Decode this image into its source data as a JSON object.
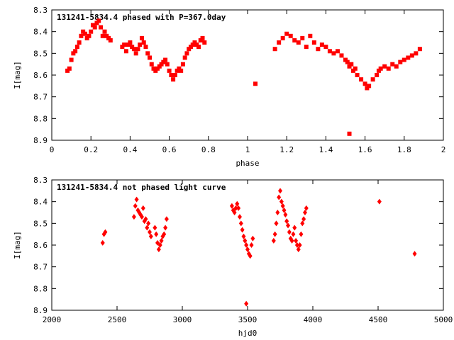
{
  "chart_data": [
    {
      "type": "scatter",
      "title": "131241-5834.4 phased with P=367.0day",
      "xlabel": "phase",
      "ylabel": "I[mag]",
      "xlim": [
        0,
        2
      ],
      "ylim": [
        8.3,
        8.9
      ],
      "y_inverted": true,
      "x_ticks": [
        "0",
        "0.2",
        "0.4",
        "0.6",
        "0.8",
        "1",
        "1.2",
        "1.4",
        "1.6",
        "1.8",
        "2"
      ],
      "y_ticks": [
        "8.3",
        "8.4",
        "8.5",
        "8.6",
        "8.7",
        "8.8",
        "8.9"
      ],
      "marker": "square",
      "color": "#ff0000",
      "grid": false,
      "series": [
        {
          "x": [
            0.08,
            0.09,
            0.1,
            0.11,
            0.12,
            0.13,
            0.14,
            0.15,
            0.16,
            0.17,
            0.18,
            0.19,
            0.2,
            0.21,
            0.22,
            0.23,
            0.24,
            0.25,
            0.26,
            0.27,
            0.28,
            0.29,
            0.3,
            0.36,
            0.37,
            0.38,
            0.39,
            0.4,
            0.41,
            0.42,
            0.43,
            0.44,
            0.45,
            0.46,
            0.47,
            0.48,
            0.49,
            0.5,
            0.51,
            0.52,
            0.53,
            0.54,
            0.55,
            0.56,
            0.57,
            0.58,
            0.59,
            0.6,
            0.61,
            0.62,
            0.63,
            0.64,
            0.65,
            0.66,
            0.67,
            0.68,
            0.69,
            0.7,
            0.71,
            0.72,
            0.73,
            0.74,
            0.75,
            0.76,
            0.77,
            0.78,
            1.04,
            1.14,
            1.16,
            1.18,
            1.2,
            1.22,
            1.24,
            1.26,
            1.28,
            1.3,
            1.32,
            1.34,
            1.36,
            1.38,
            1.4,
            1.42,
            1.44,
            1.46,
            1.48,
            1.5,
            1.51,
            1.52,
            1.53,
            1.54,
            1.55,
            1.56,
            1.58,
            1.6,
            1.61,
            1.62,
            1.64,
            1.66,
            1.67,
            1.68,
            1.7,
            1.72,
            1.74,
            1.76,
            1.78,
            1.8,
            1.82,
            1.84,
            1.86,
            1.88
          ],
          "y": [
            8.58,
            8.57,
            8.53,
            8.5,
            8.49,
            8.47,
            8.45,
            8.42,
            8.4,
            8.41,
            8.43,
            8.42,
            8.4,
            8.37,
            8.38,
            8.36,
            8.35,
            8.38,
            8.42,
            8.4,
            8.42,
            8.43,
            8.44,
            8.47,
            8.46,
            8.49,
            8.46,
            8.45,
            8.47,
            8.48,
            8.5,
            8.48,
            8.46,
            8.43,
            8.45,
            8.47,
            8.5,
            8.52,
            8.55,
            8.57,
            8.58,
            8.57,
            8.56,
            8.55,
            8.54,
            8.53,
            8.55,
            8.58,
            8.6,
            8.62,
            8.6,
            8.58,
            8.57,
            8.58,
            8.55,
            8.52,
            8.5,
            8.48,
            8.47,
            8.46,
            8.45,
            8.46,
            8.47,
            8.44,
            8.43,
            8.45,
            8.64,
            8.48,
            8.45,
            8.43,
            8.41,
            8.42,
            8.44,
            8.45,
            8.43,
            8.47,
            8.42,
            8.45,
            8.48,
            8.46,
            8.47,
            8.49,
            8.5,
            8.49,
            8.51,
            8.53,
            8.54,
            8.56,
            8.55,
            8.58,
            8.57,
            8.6,
            8.62,
            8.64,
            8.66,
            8.65,
            8.62,
            8.6,
            8.58,
            8.57,
            8.56,
            8.57,
            8.55,
            8.56,
            8.54,
            8.53,
            8.52,
            8.51,
            8.5,
            8.48
          ]
        }
      ],
      "outlier": {
        "x": [
          1.52
        ],
        "y": [
          8.87
        ]
      }
    },
    {
      "type": "scatter",
      "title": "131241-5834.4 not phased light curve",
      "xlabel": "hjd0",
      "ylabel": "I[mag]",
      "xlim": [
        2000,
        5000
      ],
      "ylim": [
        8.3,
        8.9
      ],
      "y_inverted": true,
      "x_ticks": [
        "2000",
        "2500",
        "3000",
        "3500",
        "4000",
        "4500",
        "5000"
      ],
      "y_ticks": [
        "8.3",
        "8.4",
        "8.5",
        "8.6",
        "8.7",
        "8.8",
        "8.9"
      ],
      "marker": "diamond",
      "color": "#ff0000",
      "grid": false,
      "series": [
        {
          "x": [
            2390,
            2400,
            2410,
            2630,
            2640,
            2650,
            2660,
            2670,
            2680,
            2690,
            2700,
            2710,
            2720,
            2730,
            2740,
            2750,
            2760,
            2790,
            2800,
            2810,
            2820,
            2830,
            2840,
            2850,
            2860,
            2870,
            2880,
            3380,
            3390,
            3400,
            3410,
            3420,
            3430,
            3440,
            3450,
            3460,
            3470,
            3480,
            3490,
            3500,
            3510,
            3520,
            3530,
            3540,
            3700,
            3710,
            3720,
            3730,
            3740,
            3750,
            3760,
            3770,
            3780,
            3790,
            3800,
            3810,
            3820,
            3830,
            3840,
            3850,
            3860,
            3870,
            3880,
            3890,
            3900,
            3910,
            3920,
            3930,
            3940,
            3950,
            4510,
            4780
          ],
          "y": [
            8.59,
            8.55,
            8.54,
            8.47,
            8.42,
            8.39,
            8.44,
            8.45,
            8.46,
            8.47,
            8.43,
            8.49,
            8.48,
            8.52,
            8.5,
            8.54,
            8.56,
            8.52,
            8.55,
            8.59,
            8.62,
            8.6,
            8.58,
            8.56,
            8.55,
            8.52,
            8.48,
            8.42,
            8.44,
            8.45,
            8.43,
            8.41,
            8.43,
            8.47,
            8.5,
            8.53,
            8.56,
            8.58,
            8.6,
            8.62,
            8.64,
            8.65,
            8.6,
            8.57,
            8.58,
            8.55,
            8.5,
            8.45,
            8.38,
            8.35,
            8.4,
            8.42,
            8.44,
            8.46,
            8.49,
            8.51,
            8.54,
            8.57,
            8.58,
            8.55,
            8.52,
            8.58,
            8.6,
            8.62,
            8.6,
            8.55,
            8.5,
            8.48,
            8.45,
            8.43,
            8.4,
            8.64
          ]
        }
      ],
      "outlier": {
        "x": [
          3490
        ],
        "y": [
          8.87
        ]
      }
    }
  ]
}
